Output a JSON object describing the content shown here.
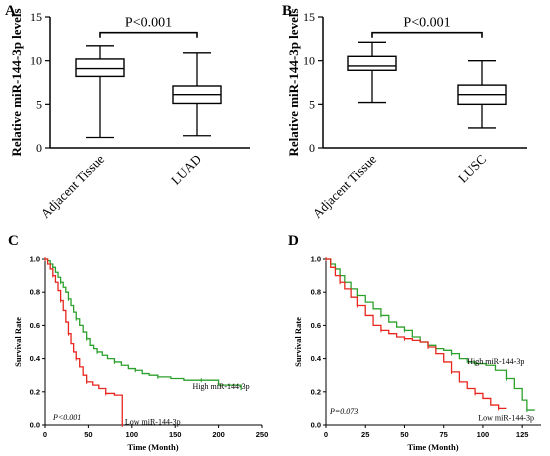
{
  "colors": {
    "high": "#2ca02c",
    "low": "#e8261f",
    "axis": "#000000"
  },
  "chart_data": [
    {
      "panel": "A",
      "type": "box",
      "ylabel": "Relative miR-144-3p levels",
      "yticks": [
        "0",
        "5",
        "10",
        "15"
      ],
      "ylim": [
        0,
        15
      ],
      "categories": [
        "Adjacent Tissue",
        "LUAD"
      ],
      "boxes": [
        {
          "name": "Adjacent Tissue",
          "min": 1.2,
          "q1": 8.2,
          "median": 9.1,
          "q3": 10.2,
          "max": 11.7
        },
        {
          "name": "LUAD",
          "min": 1.4,
          "q1": 5.1,
          "median": 6.1,
          "q3": 7.1,
          "max": 10.9
        }
      ],
      "bracket": {
        "text": "P<0.001",
        "y": 13.2
      }
    },
    {
      "panel": "B",
      "type": "box",
      "ylabel": "Relative miR-144-3p levels",
      "yticks": [
        "0",
        "5",
        "10",
        "15"
      ],
      "ylim": [
        0,
        15
      ],
      "categories": [
        "Adjacent Tissue",
        "LUSC"
      ],
      "boxes": [
        {
          "name": "Adjacent Tissue",
          "min": 5.2,
          "q1": 8.9,
          "median": 9.4,
          "q3": 10.5,
          "max": 12.1
        },
        {
          "name": "LUSC",
          "min": 2.3,
          "q1": 5.0,
          "median": 6.1,
          "q3": 7.2,
          "max": 10.0
        }
      ],
      "bracket": {
        "text": "P<0.001",
        "y": 13.2
      }
    },
    {
      "panel": "C",
      "type": "line",
      "xlabel": "Time (Month)",
      "ylabel": "Survival Rate",
      "xlim": [
        0,
        250
      ],
      "ylim": [
        0,
        1.0
      ],
      "xticks": [
        "0",
        "50",
        "100",
        "150",
        "200",
        "250"
      ],
      "yticks": [
        "0.0",
        "0.2",
        "0.4",
        "0.6",
        "0.8",
        "1.0"
      ],
      "p_text": "P<0.001",
      "series": [
        {
          "name": "High miR-144-3p",
          "key": "high",
          "points": [
            [
              0,
              1.0
            ],
            [
              3,
              0.99
            ],
            [
              6,
              0.97
            ],
            [
              9,
              0.95
            ],
            [
              12,
              0.92
            ],
            [
              15,
              0.89
            ],
            [
              18,
              0.86
            ],
            [
              21,
              0.83
            ],
            [
              24,
              0.8
            ],
            [
              27,
              0.76
            ],
            [
              30,
              0.72
            ],
            [
              33,
              0.68
            ],
            [
              36,
              0.64
            ],
            [
              40,
              0.6
            ],
            [
              44,
              0.56
            ],
            [
              48,
              0.52
            ],
            [
              52,
              0.48
            ],
            [
              56,
              0.46
            ],
            [
              60,
              0.44
            ],
            [
              66,
              0.42
            ],
            [
              72,
              0.4
            ],
            [
              80,
              0.38
            ],
            [
              88,
              0.36
            ],
            [
              96,
              0.34
            ],
            [
              104,
              0.33
            ],
            [
              112,
              0.31
            ],
            [
              120,
              0.3
            ],
            [
              130,
              0.29
            ],
            [
              145,
              0.28
            ],
            [
              160,
              0.27
            ],
            [
              180,
              0.27
            ],
            [
              200,
              0.24
            ],
            [
              226,
              0.21
            ]
          ]
        },
        {
          "name": "Low miR-144-3p",
          "key": "low",
          "points": [
            [
              0,
              1.0
            ],
            [
              3,
              0.97
            ],
            [
              6,
              0.94
            ],
            [
              9,
              0.9
            ],
            [
              12,
              0.86
            ],
            [
              15,
              0.81
            ],
            [
              18,
              0.75
            ],
            [
              21,
              0.69
            ],
            [
              24,
              0.62
            ],
            [
              27,
              0.55
            ],
            [
              30,
              0.49
            ],
            [
              33,
              0.44
            ],
            [
              36,
              0.4
            ],
            [
              40,
              0.35
            ],
            [
              44,
              0.3
            ],
            [
              48,
              0.26
            ],
            [
              55,
              0.24
            ],
            [
              62,
              0.22
            ],
            [
              70,
              0.19
            ],
            [
              80,
              0.18
            ],
            [
              89,
              0.18
            ],
            [
              89,
              0.0
            ]
          ]
        }
      ],
      "labels": [
        {
          "key": "high",
          "text": "High miR-144-3p",
          "x": 170,
          "y": 0.235
        },
        {
          "key": "low",
          "text": "Low miR-144-3p",
          "x": 92,
          "y": 0.02
        }
      ]
    },
    {
      "panel": "D",
      "type": "line",
      "xlabel": "Time (Month)",
      "ylabel": "Survival Rate",
      "xlim": [
        0,
        137
      ],
      "ylim": [
        0,
        1.0
      ],
      "xticks": [
        "0",
        "25",
        "50",
        "75",
        "100",
        "125"
      ],
      "yticks": [
        "0.0",
        "0.2",
        "0.4",
        "0.6",
        "0.8",
        "1.0"
      ],
      "p_text": "P=0.073",
      "series": [
        {
          "name": "High miR-144-3p",
          "key": "high",
          "points": [
            [
              0,
              1.0
            ],
            [
              3,
              0.97
            ],
            [
              6,
              0.94
            ],
            [
              9,
              0.9
            ],
            [
              12,
              0.86
            ],
            [
              16,
              0.82
            ],
            [
              20,
              0.78
            ],
            [
              25,
              0.74
            ],
            [
              30,
              0.7
            ],
            [
              35,
              0.66
            ],
            [
              40,
              0.62
            ],
            [
              45,
              0.59
            ],
            [
              50,
              0.57
            ],
            [
              55,
              0.53
            ],
            [
              60,
              0.5
            ],
            [
              65,
              0.48
            ],
            [
              70,
              0.46
            ],
            [
              75,
              0.45
            ],
            [
              80,
              0.43
            ],
            [
              85,
              0.4
            ],
            [
              90,
              0.38
            ],
            [
              95,
              0.37
            ],
            [
              102,
              0.36
            ],
            [
              108,
              0.33
            ],
            [
              115,
              0.28
            ],
            [
              120,
              0.22
            ],
            [
              125,
              0.15
            ],
            [
              128,
              0.09
            ],
            [
              133,
              0.09
            ]
          ]
        },
        {
          "name": "Low miR-144-3p",
          "key": "low",
          "points": [
            [
              0,
              1.0
            ],
            [
              3,
              0.95
            ],
            [
              6,
              0.9
            ],
            [
              9,
              0.86
            ],
            [
              12,
              0.82
            ],
            [
              16,
              0.77
            ],
            [
              20,
              0.72
            ],
            [
              25,
              0.66
            ],
            [
              30,
              0.6
            ],
            [
              35,
              0.57
            ],
            [
              40,
              0.55
            ],
            [
              45,
              0.53
            ],
            [
              50,
              0.52
            ],
            [
              55,
              0.51
            ],
            [
              60,
              0.5
            ],
            [
              65,
              0.47
            ],
            [
              70,
              0.43
            ],
            [
              75,
              0.38
            ],
            [
              80,
              0.32
            ],
            [
              85,
              0.26
            ],
            [
              90,
              0.22
            ],
            [
              95,
              0.19
            ],
            [
              100,
              0.16
            ],
            [
              105,
              0.12
            ],
            [
              110,
              0.1
            ],
            [
              115,
              0.1
            ]
          ]
        }
      ],
      "labels": [
        {
          "key": "high",
          "text": "High miR-144-3p",
          "x": 90,
          "y": 0.385
        },
        {
          "key": "low",
          "text": "Low miR-144-3p",
          "x": 97,
          "y": 0.045
        }
      ]
    }
  ]
}
